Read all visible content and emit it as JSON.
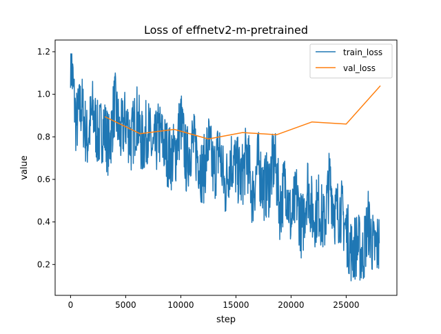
{
  "chart_data": {
    "type": "line",
    "title": "Loss of effnetv2-m-pretrained",
    "xlabel": "step",
    "ylabel": "value",
    "xlim": [
      -1400,
      29600
    ],
    "ylim": [
      0.055,
      1.255
    ],
    "grid": false,
    "legend_position": "top-right",
    "x_ticks": [
      0,
      5000,
      10000,
      15000,
      20000,
      25000
    ],
    "x_tick_labels": [
      "0",
      "5000",
      "10000",
      "15000",
      "20000",
      "25000"
    ],
    "y_ticks": [
      0.2,
      0.4,
      0.6,
      0.8,
      1.0,
      1.2
    ],
    "y_tick_labels": [
      "0.2",
      "0.4",
      "0.6",
      "0.8",
      "1.0",
      "1.2"
    ],
    "series": [
      {
        "name": "train_loss",
        "color": "#1f77b4",
        "x": [
          0,
          500,
          1000,
          1500,
          2000,
          2500,
          3000,
          3500,
          4000,
          4500,
          5000,
          5500,
          6000,
          6500,
          7000,
          7500,
          8000,
          8500,
          9000,
          9500,
          10000,
          10500,
          11000,
          11500,
          12000,
          12500,
          13000,
          13500,
          14000,
          14500,
          15000,
          15500,
          16000,
          16500,
          17000,
          17500,
          18000,
          18500,
          19000,
          19500,
          20000,
          20500,
          21000,
          21500,
          22000,
          22500,
          23000,
          23500,
          24000,
          24500,
          25000,
          25500,
          26000,
          26500,
          27000,
          27500,
          28000
        ],
        "y": [
          1.19,
          0.86,
          0.95,
          0.78,
          0.92,
          0.8,
          0.85,
          0.75,
          0.96,
          0.8,
          0.88,
          0.78,
          0.9,
          0.76,
          0.84,
          0.72,
          0.82,
          0.76,
          0.7,
          0.72,
          0.88,
          0.68,
          0.78,
          0.72,
          0.62,
          0.77,
          0.63,
          0.75,
          0.55,
          0.7,
          0.66,
          0.6,
          0.72,
          0.52,
          0.68,
          0.56,
          0.58,
          0.7,
          0.46,
          0.6,
          0.4,
          0.52,
          0.36,
          0.58,
          0.42,
          0.48,
          0.38,
          0.6,
          0.44,
          0.46,
          0.36,
          0.26,
          0.3,
          0.24,
          0.4,
          0.27,
          0.3
        ],
        "note_dense": "noisy per-step curve"
      },
      {
        "name": "val_loss",
        "color": "#ff7f0e",
        "x": [
          3100,
          6300,
          9400,
          12500,
          15600,
          18700,
          21900,
          25000,
          28100
        ],
        "y": [
          0.895,
          0.815,
          0.835,
          0.79,
          0.82,
          0.81,
          0.87,
          0.86,
          1.04
        ]
      }
    ]
  }
}
